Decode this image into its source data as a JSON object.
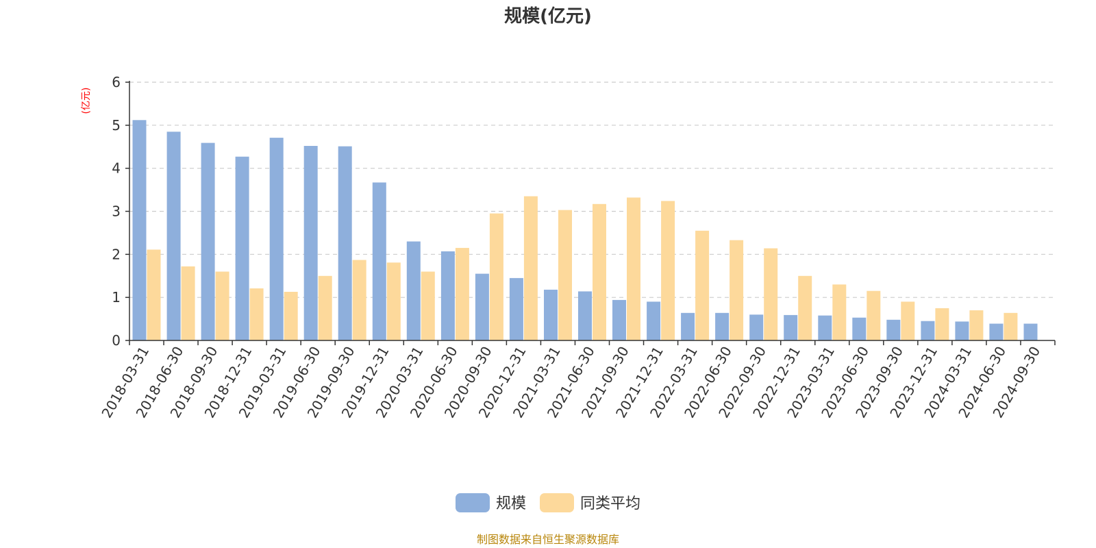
{
  "chart_data": {
    "type": "bar",
    "title": "规模(亿元)",
    "ylabel": "(亿元)",
    "xlabel": "",
    "ylim": [
      0,
      6
    ],
    "yticks": [
      "0",
      "1",
      "2",
      "3",
      "4",
      "5",
      "6"
    ],
    "grid": true,
    "legend_position": "bottom-center",
    "categories": [
      "2018-03-31",
      "2018-06-30",
      "2018-09-30",
      "2018-12-31",
      "2019-03-31",
      "2019-06-30",
      "2019-09-30",
      "2019-12-31",
      "2020-03-31",
      "2020-06-30",
      "2020-09-30",
      "2020-12-31",
      "2021-03-31",
      "2021-06-30",
      "2021-09-30",
      "2021-12-31",
      "2022-03-31",
      "2022-06-30",
      "2022-09-30",
      "2022-12-31",
      "2023-03-31",
      "2023-06-30",
      "2023-09-30",
      "2023-12-31",
      "2024-03-31",
      "2024-06-30",
      "2024-09-30"
    ],
    "series": [
      {
        "name": "规模",
        "color": "#8EAFDC",
        "values": [
          5.12,
          4.85,
          4.59,
          4.27,
          4.71,
          4.52,
          4.51,
          3.67,
          2.3,
          2.07,
          1.55,
          1.45,
          1.18,
          1.14,
          0.94,
          0.9,
          0.64,
          0.64,
          0.6,
          0.59,
          0.58,
          0.53,
          0.48,
          0.45,
          0.44,
          0.39,
          0.39
        ]
      },
      {
        "name": "同类平均",
        "color": "#FDD99B",
        "values": [
          2.11,
          1.72,
          1.6,
          1.21,
          1.13,
          1.5,
          1.87,
          1.81,
          1.6,
          2.15,
          2.95,
          3.35,
          3.03,
          3.17,
          3.32,
          3.24,
          2.55,
          2.33,
          2.14,
          1.5,
          1.3,
          1.15,
          0.9,
          0.75,
          0.7,
          0.64,
          null
        ]
      }
    ]
  },
  "source_note": "制图数据来自恒生聚源数据库",
  "colors": {
    "title": "#333333",
    "ylabel": "#ff0000",
    "axis": "#333333",
    "grid": "#cccccc",
    "source": "#b8860b"
  }
}
